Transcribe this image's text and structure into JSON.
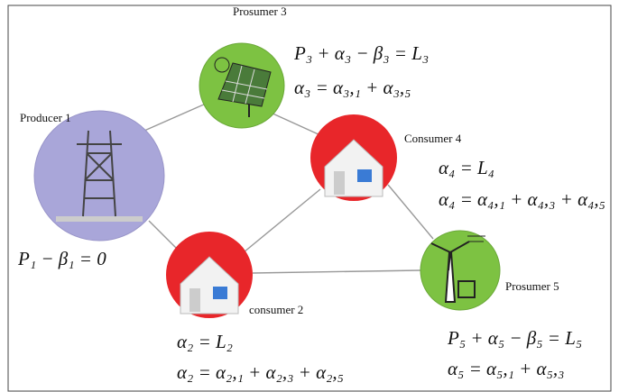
{
  "nodes": [
    {
      "label": "Producer 1",
      "equations": [
        "P₁ − β₁ = 0"
      ]
    },
    {
      "label": "consumer 2",
      "equations": [
        "α₂ = L₂",
        "α₂ = α₂,₁ + α₂,₃ + α₂,₅"
      ]
    },
    {
      "label": "Prosumer 3",
      "equations": [
        "P₃ + α₃ − β₃ = L₃",
        "α₃ = α₃,₁ + α₃,₅"
      ]
    },
    {
      "label": "Consumer 4",
      "equations": [
        "α₄ = L₄",
        "α₄ = α₄,₁ + α₄,₃ + α₄,₅"
      ]
    },
    {
      "label": "Prosumer 5",
      "equations": [
        "P₅ + α₅ − β₅ = L₅",
        "α₅ = α₅,₁ + α₅,₃"
      ]
    }
  ]
}
